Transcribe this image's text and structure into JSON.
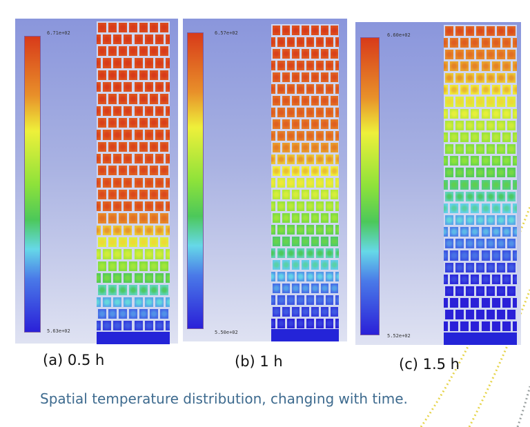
{
  "panels": [
    {
      "id": "a",
      "caption": "(a) 0.5 h",
      "legend_top": "6.71e+02",
      "legend_bottom": "5.63e+02"
    },
    {
      "id": "b",
      "caption": "(b) 1 h",
      "legend_top": "6.57e+02",
      "legend_bottom": "5.50e+02"
    },
    {
      "id": "c",
      "caption": "(c) 1.5 h",
      "legend_top": "6.60e+02",
      "legend_bottom": "5.52e+02"
    }
  ],
  "caption": "Spatial temperature distribution, changing with time.",
  "colors": {
    "caption": "#3d6a8e",
    "hot": "#d83a1a",
    "cold": "#2a20d8",
    "decor_dots": "#e8d84a"
  }
}
